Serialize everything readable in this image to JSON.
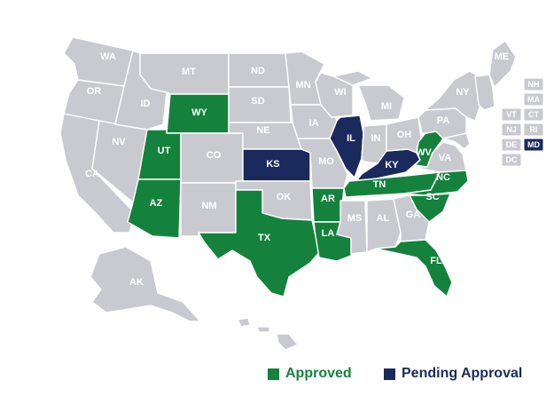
{
  "colors": {
    "default": "#c9cad0",
    "approved": "#14823c",
    "pending": "#1b2a5c",
    "label": "#ffffff"
  },
  "legend": {
    "approved_label": "Approved",
    "pending_label": "Pending Approval"
  },
  "states": {
    "WA": "default",
    "OR": "default",
    "CA": "default",
    "NV": "default",
    "ID": "default",
    "MT": "default",
    "WY": "approved",
    "UT": "approved",
    "AZ": "approved",
    "CO": "default",
    "NM": "default",
    "ND": "default",
    "SD": "default",
    "NE": "default",
    "KS": "pending",
    "OK": "default",
    "TX": "approved",
    "MN": "default",
    "IA": "default",
    "MO": "default",
    "AR": "approved",
    "LA": "approved",
    "WI": "default",
    "IL": "pending",
    "MS": "default",
    "MI": "default",
    "IN": "default",
    "KY": "pending",
    "TN": "approved",
    "AL": "default",
    "OH": "default",
    "WV": "approved",
    "GA": "default",
    "FL": "approved",
    "SC": "approved",
    "NC": "approved",
    "VA": "default",
    "PA": "default",
    "NY": "default",
    "ME": "default",
    "AK": "default",
    "HI": "default"
  },
  "small_states": [
    {
      "code": "NH",
      "status": "default"
    },
    {
      "code": "MA",
      "status": "default"
    },
    {
      "code": "VT",
      "status": "default"
    },
    {
      "code": "CT",
      "status": "default"
    },
    {
      "code": "NJ",
      "status": "default"
    },
    {
      "code": "RI",
      "status": "default"
    },
    {
      "code": "DE",
      "status": "default"
    },
    {
      "code": "MD",
      "status": "pending"
    },
    {
      "code": "DC",
      "status": "default"
    }
  ]
}
